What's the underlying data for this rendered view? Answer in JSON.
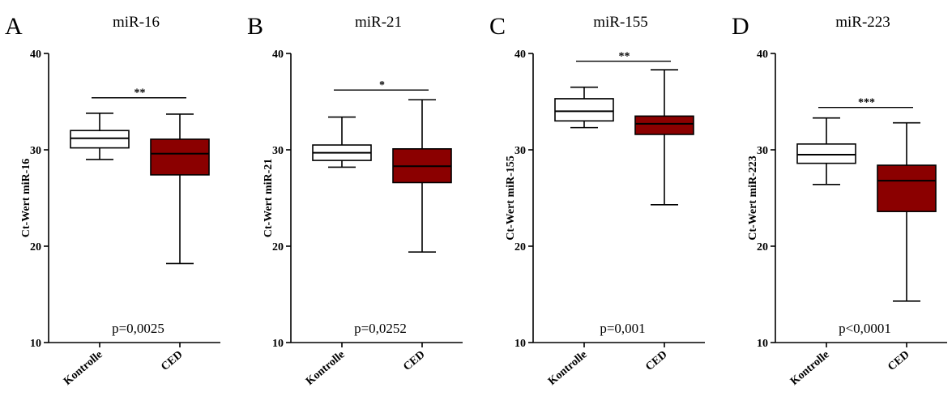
{
  "chart_data": [
    {
      "type": "box",
      "panel_letter": "A",
      "title": "miR-16",
      "ylabel": "Ct-Wert miR-16",
      "ylim": [
        10,
        40
      ],
      "yticks": [
        10,
        20,
        30,
        40
      ],
      "categories": [
        "Kontrolle",
        "CED"
      ],
      "colors": [
        "#ffffff",
        "#8b0000"
      ],
      "boxes": [
        {
          "min": 29.0,
          "q1": 30.2,
          "median": 31.2,
          "q3": 32.0,
          "max": 33.8
        },
        {
          "min": 18.2,
          "q1": 27.4,
          "median": 29.6,
          "q3": 31.1,
          "max": 33.7
        }
      ],
      "significance": "**",
      "sig_y": 35.4,
      "pvalue": "p=0,0025",
      "pvalue_y": 11.5
    },
    {
      "type": "box",
      "panel_letter": "B",
      "title": "miR-21",
      "ylabel": "Ct-Wert miR-21",
      "ylim": [
        10,
        40
      ],
      "yticks": [
        10,
        20,
        30,
        40
      ],
      "categories": [
        "Kontrolle",
        "CED"
      ],
      "colors": [
        "#ffffff",
        "#8b0000"
      ],
      "boxes": [
        {
          "min": 28.2,
          "q1": 28.9,
          "median": 29.7,
          "q3": 30.5,
          "max": 33.4
        },
        {
          "min": 19.4,
          "q1": 26.6,
          "median": 28.3,
          "q3": 30.1,
          "max": 35.2
        }
      ],
      "significance": "*",
      "sig_y": 36.2,
      "pvalue": "p=0,0252",
      "pvalue_y": 11.5
    },
    {
      "type": "box",
      "panel_letter": "C",
      "title": "miR-155",
      "ylabel": "Ct-Wert miR-155",
      "ylim": [
        10,
        40
      ],
      "yticks": [
        10,
        20,
        30,
        40
      ],
      "categories": [
        "Kontrolle",
        "CED"
      ],
      "colors": [
        "#ffffff",
        "#8b0000"
      ],
      "boxes": [
        {
          "min": 32.3,
          "q1": 33.0,
          "median": 34.0,
          "q3": 35.3,
          "max": 36.5
        },
        {
          "min": 24.3,
          "q1": 31.6,
          "median": 32.7,
          "q3": 33.5,
          "max": 38.3
        }
      ],
      "significance": "**",
      "sig_y": 39.2,
      "pvalue": "p=0,001",
      "pvalue_y": 11.5
    },
    {
      "type": "box",
      "panel_letter": "D",
      "title": "miR-223",
      "ylabel": "Ct-Wert miR-223",
      "ylim": [
        10,
        40
      ],
      "yticks": [
        10,
        20,
        30,
        40
      ],
      "categories": [
        "Kontrolle",
        "CED"
      ],
      "colors": [
        "#ffffff",
        "#8b0000"
      ],
      "boxes": [
        {
          "min": 26.4,
          "q1": 28.6,
          "median": 29.5,
          "q3": 30.6,
          "max": 33.3
        },
        {
          "min": 14.3,
          "q1": 23.6,
          "median": 26.8,
          "q3": 28.4,
          "max": 32.8
        }
      ],
      "significance": "***",
      "sig_y": 34.4,
      "pvalue": "p<0,0001",
      "pvalue_y": 11.5
    }
  ]
}
